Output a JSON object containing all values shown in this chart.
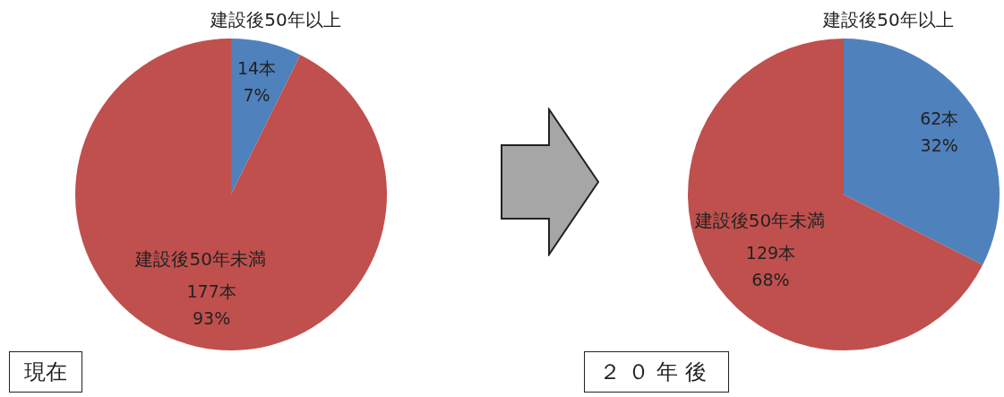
{
  "chart_data": [
    {
      "type": "pie",
      "title": "現在",
      "categories": [
        "建設後50年以上",
        "建設後50年未満"
      ],
      "values": [
        14,
        177
      ],
      "colors": [
        "#4f81bd",
        "#c0504d"
      ],
      "value_labels": [
        "14本\n7%",
        "177本\n93%"
      ],
      "legend": false
    },
    {
      "type": "pie",
      "title": "２０年後",
      "categories": [
        "建設後50年以上",
        "建設後50年未満"
      ],
      "values": [
        62,
        129
      ],
      "colors": [
        "#4f81bd",
        "#c0504d"
      ],
      "value_labels": [
        "62本\n32%",
        "129本\n68%"
      ],
      "legend": false
    }
  ]
}
